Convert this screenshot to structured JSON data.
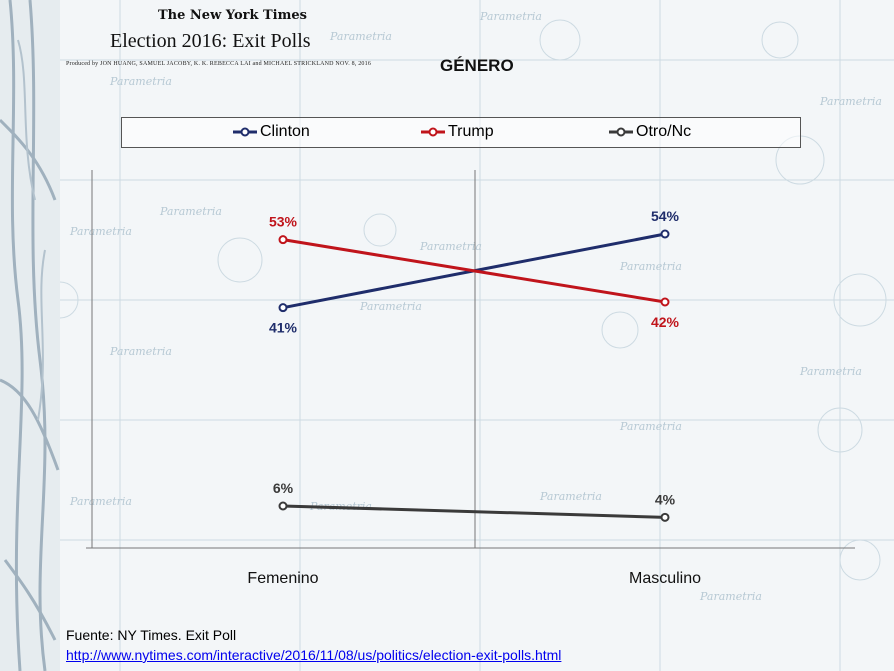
{
  "header": {
    "logo_text": "The New York Times",
    "title": "Election 2016: Exit Polls",
    "credits": "Produced by JON HUANG, SAMUEL JACOBY, K. K. REBECCA LAI and MICHAEL STRICKLAND   NOV. 8, 2016"
  },
  "watermark_text": "Parametria",
  "chart_data": {
    "type": "line",
    "title": "GÉNERO",
    "categories": [
      "Femenino",
      "Masculino"
    ],
    "series": [
      {
        "name": "Clinton",
        "values": [
          41,
          54
        ],
        "labels": [
          "41%",
          "54%"
        ],
        "color": "#1f2d6b"
      },
      {
        "name": "Trump",
        "values": [
          53,
          42
        ],
        "labels": [
          "53%",
          "42%"
        ],
        "color": "#c0141b"
      },
      {
        "name": "Otro/Nc",
        "values": [
          6,
          4
        ],
        "labels": [
          "6%",
          "4%"
        ],
        "color": "#3a3a3a"
      }
    ],
    "xlabel": "",
    "ylabel": "",
    "ylim": [
      0,
      60
    ],
    "legend_position": "top",
    "grid": false
  },
  "footer": {
    "source": "Fuente: NY Times. Exit Poll",
    "url": "http://www.nytimes.com/interactive/2016/11/08/us/politics/election-exit-polls.html"
  }
}
